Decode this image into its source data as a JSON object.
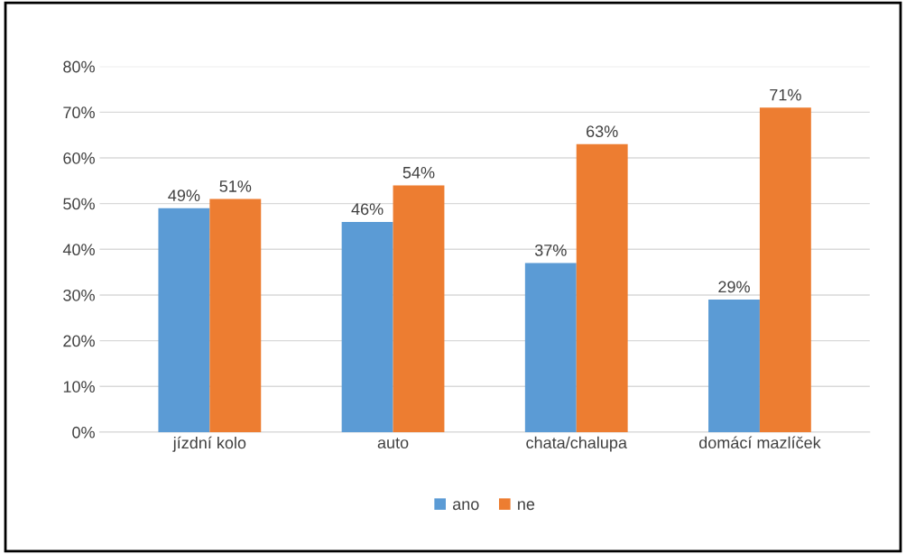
{
  "chart_data": {
    "type": "bar",
    "categories": [
      "jízdní kolo",
      "auto",
      "chata/chalupa",
      "domácí mazlíček"
    ],
    "series": [
      {
        "name": "ano",
        "color": "#5b9bd5",
        "values": [
          49,
          46,
          37,
          29
        ],
        "value_labels": [
          "49%",
          "46%",
          "37%",
          "29%"
        ]
      },
      {
        "name": "ne",
        "color": "#ed7d31",
        "values": [
          51,
          54,
          63,
          71
        ],
        "value_labels": [
          "51%",
          "54%",
          "63%",
          "71%"
        ]
      }
    ],
    "ylim": [
      0,
      80
    ],
    "yticks": [
      {
        "value": 0,
        "label": "0%"
      },
      {
        "value": 10,
        "label": "10%"
      },
      {
        "value": 20,
        "label": "20%"
      },
      {
        "value": 30,
        "label": "30%"
      },
      {
        "value": 40,
        "label": "40%"
      },
      {
        "value": 50,
        "label": "50%"
      },
      {
        "value": 60,
        "label": "60%"
      },
      {
        "value": 70,
        "label": "70%"
      },
      {
        "value": 80,
        "label": "80%"
      }
    ],
    "grid": "y",
    "legend": "bottom"
  }
}
